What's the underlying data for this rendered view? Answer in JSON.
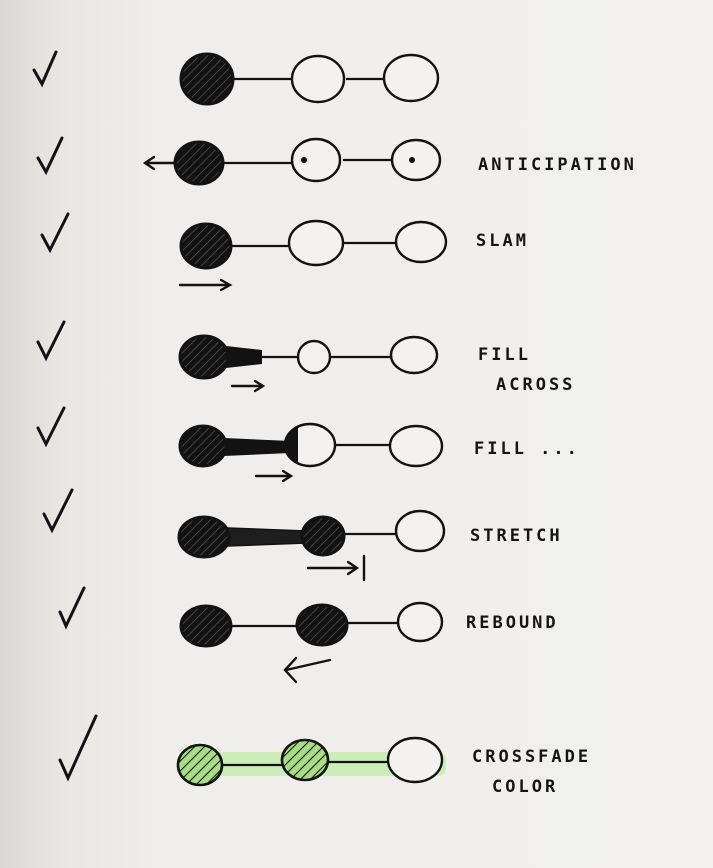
{
  "rows": [
    {
      "label_lines": []
    },
    {
      "label_lines": [
        "ANTICIPATION"
      ]
    },
    {
      "label_lines": [
        "SLAM"
      ]
    },
    {
      "label_lines": [
        "FILL",
        "ACROSS"
      ]
    },
    {
      "label_lines": [
        "FILL ..."
      ]
    },
    {
      "label_lines": [
        "STRETCH"
      ]
    },
    {
      "label_lines": [
        "REBOUND"
      ]
    },
    {
      "label_lines": [
        "CROSSFADE",
        "COLOR"
      ]
    }
  ],
  "colors": {
    "ink": "#121212",
    "paper": "#efeeea",
    "highlight": "#c6ecb0",
    "crossfade_fill": "#a9dd86"
  }
}
